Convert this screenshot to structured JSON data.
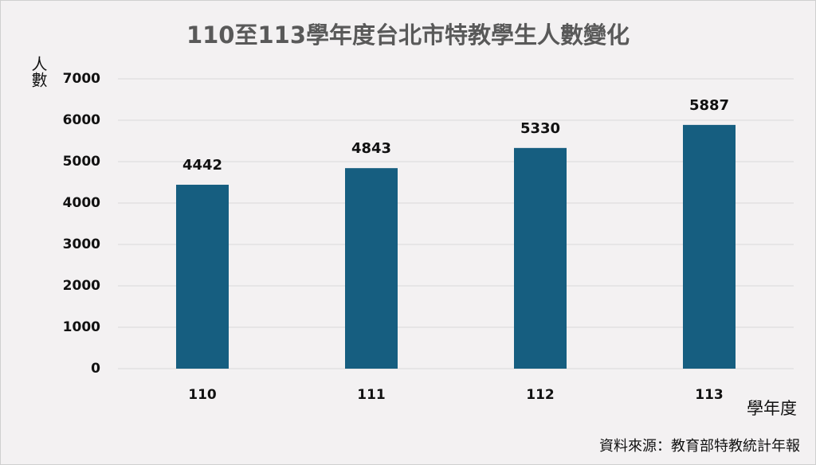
{
  "chart_data": {
    "type": "bar",
    "title": "110至113學年度台北市特教學生人數變化",
    "y_label": "人數",
    "x_label": "學年度",
    "source": "資料來源：教育部特教統計年報",
    "categories": [
      "110",
      "111",
      "112",
      "113"
    ],
    "values": [
      4442,
      4843,
      5330,
      5887
    ],
    "color": "#165e80",
    "ylim": [
      0,
      7000
    ],
    "yticks": [
      0,
      1000,
      2000,
      3000,
      4000,
      5000,
      6000,
      7000
    ],
    "grid": true
  }
}
